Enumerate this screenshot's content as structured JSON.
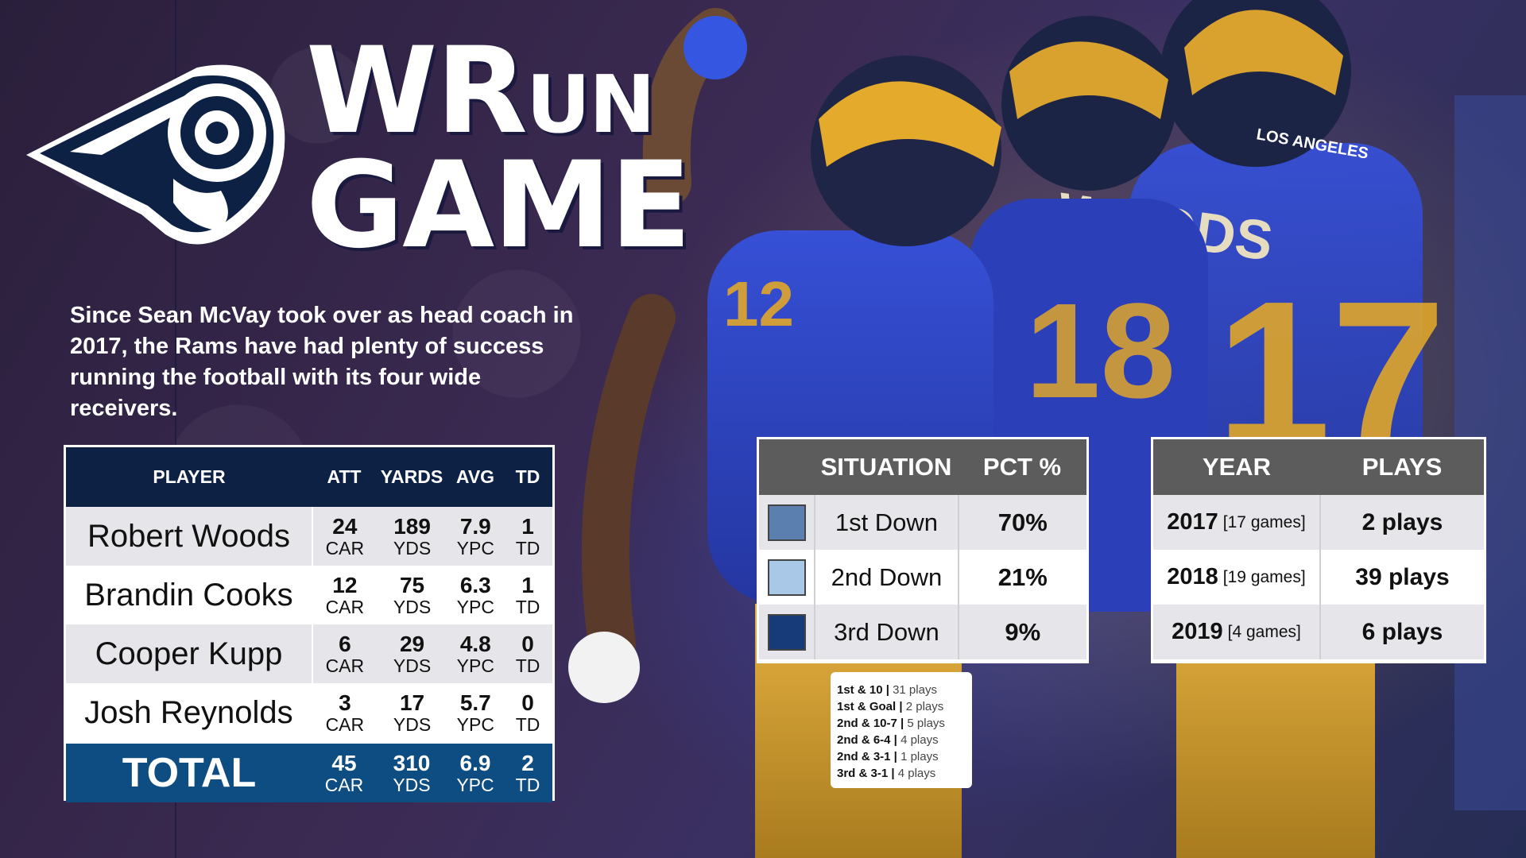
{
  "title": {
    "part1": "WR",
    "part2": "UN",
    "line2": "GAME"
  },
  "intro": "Since Sean McVay took over as head coach in 2017, the Rams have had plenty of success running the football with its four wide receivers.",
  "player_table": {
    "headers": {
      "player": "PLAYER",
      "att": "ATT",
      "yards": "YARDS",
      "avg": "AVG",
      "td": "TD"
    },
    "rows": [
      {
        "name": "Robert Woods",
        "att": "24",
        "att_u": "CAR",
        "yds": "189",
        "yds_u": "YDS",
        "avg": "7.9",
        "avg_u": "YPC",
        "td": "1",
        "td_u": "TD"
      },
      {
        "name": "Brandin Cooks",
        "att": "12",
        "att_u": "CAR",
        "yds": "75",
        "yds_u": "YDS",
        "avg": "6.3",
        "avg_u": "YPC",
        "td": "1",
        "td_u": "TD"
      },
      {
        "name": "Cooper Kupp",
        "att": "6",
        "att_u": "CAR",
        "yds": "29",
        "yds_u": "YDS",
        "avg": "4.8",
        "avg_u": "YPC",
        "td": "0",
        "td_u": "TD"
      },
      {
        "name": "Josh Reynolds",
        "att": "3",
        "att_u": "CAR",
        "yds": "17",
        "yds_u": "YDS",
        "avg": "5.7",
        "avg_u": "YPC",
        "td": "0",
        "td_u": "TD"
      }
    ],
    "total": {
      "name": "TOTAL",
      "att": "45",
      "att_u": "CAR",
      "yds": "310",
      "yds_u": "YDS",
      "avg": "6.9",
      "avg_u": "YPC",
      "td": "2",
      "td_u": "TD"
    }
  },
  "situation_table": {
    "headers": {
      "situation": "SITUATION",
      "pct": "PCT %"
    },
    "rows": [
      {
        "situation": "1st Down",
        "pct": "70%",
        "color": "#5b7fae"
      },
      {
        "situation": "2nd Down",
        "pct": "21%",
        "color": "#a9c8e8"
      },
      {
        "situation": "3rd Down",
        "pct": "9%",
        "color": "#173a78"
      }
    ]
  },
  "breakdown": [
    {
      "label": "1st & 10 |",
      "value": "31 plays"
    },
    {
      "label": "1st & Goal |",
      "value": "2 plays"
    },
    {
      "label": "2nd & 10-7 |",
      "value": "5 plays"
    },
    {
      "label": "2nd & 6-4 |",
      "value": "4 plays"
    },
    {
      "label": "2nd & 3-1 |",
      "value": "1 plays"
    },
    {
      "label": "3rd & 3-1 |",
      "value": "4 plays"
    }
  ],
  "year_table": {
    "headers": {
      "year": "YEAR",
      "plays": "PLAYS"
    },
    "rows": [
      {
        "year": "2017",
        "games": "[17 games]",
        "plays": "2 plays"
      },
      {
        "year": "2018",
        "games": "[19 games]",
        "plays": "39 plays"
      },
      {
        "year": "2019",
        "games": "[4 games]",
        "plays": "6 plays"
      }
    ]
  },
  "jersey_numbers": {
    "left": "12",
    "right": "17",
    "back": "18"
  },
  "jersey_name": "WOODS",
  "helmet_text": "LOS ANGELES",
  "colors": {
    "rams_navy": "#0d2145",
    "rams_blue": "#0e4d82",
    "rams_gold": "#e8a823",
    "jersey_blue": "#2e48c8",
    "header_gray": "#5c5c5c"
  }
}
